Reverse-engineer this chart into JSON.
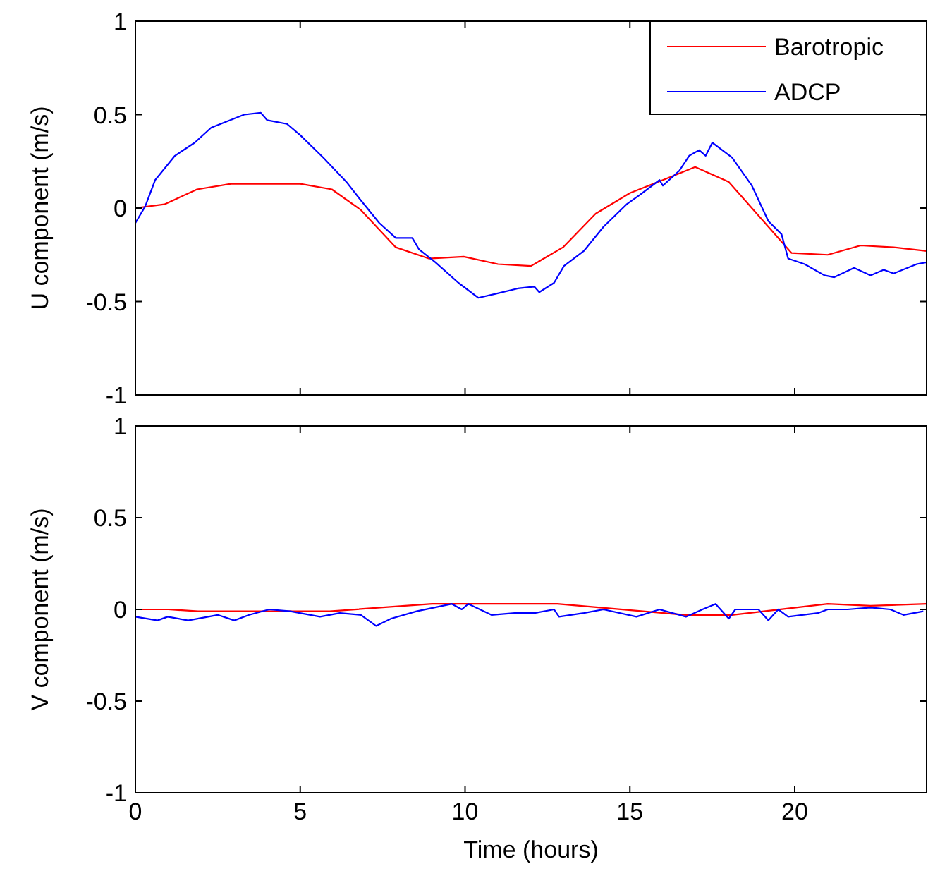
{
  "chart_data": [
    {
      "type": "line",
      "ylabel": "U component (m/s)",
      "xlim": [
        0,
        24
      ],
      "xticks": [
        0,
        5,
        10,
        15,
        20
      ],
      "ylim": [
        -1,
        1
      ],
      "yticks": [
        -1,
        -0.5,
        0,
        0.5,
        1
      ],
      "tick_labels": "y",
      "legend": "top right",
      "grid": false,
      "series": [
        {
          "name": "Barotropic",
          "color": "#ff0000",
          "x": [
            0,
            0.88,
            1.87,
            2.9,
            4,
            5,
            5.96,
            6.84,
            7.9,
            8.9,
            9.96,
            11,
            12,
            12.97,
            13.96,
            15,
            16,
            16.98,
            18,
            19.9,
            21,
            22,
            23,
            24
          ],
          "values": [
            0,
            0.02,
            0.1,
            0.13,
            0.13,
            0.13,
            0.1,
            -0.01,
            -0.21,
            -0.27,
            -0.26,
            -0.3,
            -0.31,
            -0.21,
            -0.03,
            0.08,
            0.15,
            0.22,
            0.14,
            -0.24,
            -0.25,
            -0.2,
            -0.21,
            -0.23
          ]
        },
        {
          "name": "ADCP",
          "color": "#0000ff",
          "x": [
            0,
            0.3,
            0.6,
            1.2,
            1.8,
            2.3,
            3.3,
            3.8,
            4,
            4.6,
            5,
            5.7,
            6.4,
            6.8,
            7.4,
            7.9,
            8.4,
            8.6,
            9.1,
            9.8,
            10.4,
            10.9,
            11.6,
            12.1,
            12.25,
            12.7,
            13,
            13.6,
            14.2,
            14.9,
            15.3,
            15.9,
            16,
            16.5,
            16.8,
            17.1,
            17.3,
            17.5,
            18.1,
            18.7,
            19.2,
            19.6,
            19.8,
            20.3,
            20.9,
            21.2,
            21.8,
            22.3,
            22.7,
            23,
            23.7,
            24
          ],
          "values": [
            -0.08,
            0.01,
            0.15,
            0.28,
            0.35,
            0.43,
            0.5,
            0.51,
            0.47,
            0.45,
            0.39,
            0.27,
            0.14,
            0.05,
            -0.08,
            -0.16,
            -0.16,
            -0.22,
            -0.29,
            -0.4,
            -0.48,
            -0.46,
            -0.43,
            -0.42,
            -0.45,
            -0.4,
            -0.31,
            -0.23,
            -0.1,
            0.02,
            0.07,
            0.15,
            0.12,
            0.2,
            0.28,
            0.31,
            0.28,
            0.35,
            0.27,
            0.12,
            -0.07,
            -0.14,
            -0.27,
            -0.3,
            -0.36,
            -0.37,
            -0.32,
            -0.36,
            -0.33,
            -0.35,
            -0.3,
            -0.29
          ]
        }
      ]
    },
    {
      "type": "line",
      "xlabel": "Time (hours)",
      "ylabel": "V component (m/s)",
      "xlim": [
        0,
        24
      ],
      "xticks": [
        0,
        5,
        10,
        15,
        20
      ],
      "ylim": [
        -1,
        1
      ],
      "yticks": [
        -1,
        -0.5,
        0,
        0.5,
        1
      ],
      "grid": false,
      "series": [
        {
          "color": "#ff0000",
          "x": [
            0,
            1,
            1.9,
            5.9,
            9,
            12.8,
            16.7,
            18.1,
            21,
            22.3,
            24
          ],
          "values": [
            0,
            0,
            -0.01,
            -0.01,
            0.03,
            0.03,
            -0.03,
            -0.03,
            0.03,
            0.02,
            0.03
          ]
        },
        {
          "color": "#0000ff",
          "x": [
            0,
            0.67,
            0.98,
            1.6,
            2.5,
            3,
            3.45,
            4.06,
            4.7,
            5.6,
            6.2,
            6.84,
            7.3,
            7.76,
            8.53,
            9.6,
            9.9,
            10.1,
            10.8,
            11.5,
            12.1,
            12.7,
            12.85,
            13.6,
            14.2,
            15.2,
            15.9,
            16.7,
            17.2,
            17.6,
            18,
            18.2,
            18.9,
            19.2,
            19.5,
            19.8,
            20.7,
            21,
            21.6,
            22.3,
            22.9,
            23.3,
            23.9
          ],
          "values": [
            -0.04,
            -0.06,
            -0.04,
            -0.06,
            -0.03,
            -0.06,
            -0.03,
            0,
            -0.01,
            -0.04,
            -0.02,
            -0.03,
            -0.09,
            -0.05,
            -0.01,
            0.03,
            0,
            0.03,
            -0.03,
            -0.02,
            -0.02,
            0,
            -0.04,
            -0.02,
            0,
            -0.04,
            0,
            -0.04,
            0,
            0.03,
            -0.05,
            0,
            0,
            -0.06,
            0,
            -0.04,
            -0.02,
            0,
            0,
            0.01,
            0,
            -0.03,
            -0.01
          ]
        }
      ]
    }
  ]
}
